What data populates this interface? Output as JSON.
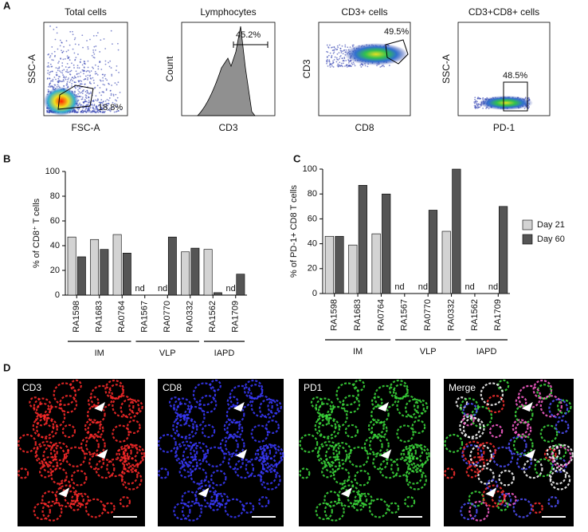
{
  "panel_labels": [
    "A",
    "B",
    "C",
    "D"
  ],
  "flow_plots": [
    {
      "title": "Total cells",
      "ylabel": "SSC-A",
      "xlabel": "FSC-A",
      "gate_label": "18.8%"
    },
    {
      "title": "Lymphocytes",
      "ylabel": "Count",
      "xlabel": "CD3",
      "gate_label": "45.2%"
    },
    {
      "title": "CD3+ cells",
      "ylabel": "CD3",
      "xlabel": "CD8",
      "gate_label": "49.5%"
    },
    {
      "title": "CD3+CD8+ cells",
      "ylabel": "SSC-A",
      "xlabel": "PD-1",
      "gate_label": "48.5%"
    }
  ],
  "chart_data": [
    {
      "type": "bar",
      "ylabel": "% of CD8⁺ T cells",
      "categories": [
        "RA1598",
        "RA1683",
        "RA0764",
        "RA1567",
        "RA0770",
        "RA0332",
        "RA1562",
        "RA1709"
      ],
      "group_labels": [
        "IM",
        "VLP",
        "IAPD"
      ],
      "group_sizes": [
        3,
        3,
        2
      ],
      "series": [
        {
          "color": "#d3d3d3",
          "values": [
            47,
            45,
            49,
            null,
            null,
            35,
            37,
            null
          ],
          "value_labels": [
            null,
            null,
            null,
            "nd",
            "nd",
            null,
            null,
            "nd"
          ]
        },
        {
          "color": "#555555",
          "values": [
            31,
            37,
            34,
            null,
            47,
            38,
            2,
            17
          ]
        }
      ],
      "ylim": [
        0,
        100
      ],
      "yticks": [
        0,
        20,
        40,
        60,
        80,
        100
      ]
    },
    {
      "type": "bar",
      "ylabel": "% of PD-1+ CD8 T cells",
      "categories": [
        "RA1598",
        "RA1683",
        "RA0764",
        "RA1567",
        "RA0770",
        "RA0332",
        "RA1562",
        "RA1709"
      ],
      "group_labels": [
        "IM",
        "VLP",
        "IAPD"
      ],
      "group_sizes": [
        3,
        3,
        2
      ],
      "series": [
        {
          "name": "Day 21",
          "color": "#d3d3d3",
          "values": [
            46,
            39,
            48,
            null,
            null,
            50,
            null,
            null
          ],
          "value_labels": [
            null,
            null,
            null,
            "nd",
            "nd",
            null,
            "nd",
            "nd"
          ]
        },
        {
          "name": "Day 60",
          "color": "#555555",
          "values": [
            46,
            87,
            80,
            null,
            67,
            100,
            null,
            70
          ]
        }
      ],
      "ylim": [
        0,
        100
      ],
      "yticks": [
        0,
        20,
        40,
        60,
        80,
        100
      ],
      "legend": "right"
    }
  ],
  "images": [
    {
      "label": "CD3",
      "color": "#ff2a2a"
    },
    {
      "label": "CD8",
      "color": "#3a3aff"
    },
    {
      "label": "PD1",
      "color": "#3cdc3c"
    },
    {
      "label": "Merge",
      "color": "#ff60c0"
    }
  ]
}
